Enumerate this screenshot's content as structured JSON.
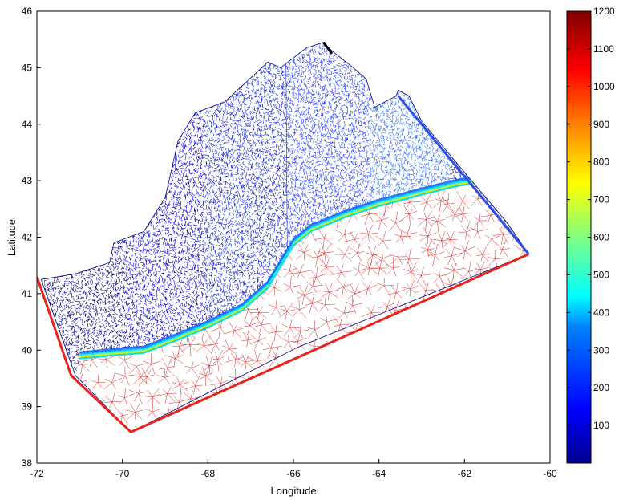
{
  "chart_data": {
    "type": "mesh-map",
    "title": "",
    "xlabel": "Longitude",
    "ylabel": "Latitude",
    "xlim": [
      -72,
      -60
    ],
    "ylim": [
      38,
      46
    ],
    "x_ticks": [
      -72,
      -70,
      -68,
      -66,
      -64,
      -62,
      -60
    ],
    "y_ticks": [
      38,
      39,
      40,
      41,
      42,
      43,
      44,
      45,
      46
    ],
    "grid": false,
    "colorbar": {
      "range": [
        0,
        1200
      ],
      "colormap": "jet",
      "ticks": [
        100,
        200,
        300,
        400,
        500,
        600,
        700,
        800,
        900,
        1000,
        1100,
        1200
      ],
      "placement": "right"
    },
    "series": [
      {
        "role": "mesh-domain-outline",
        "color": "#8b2222",
        "x": [
          -71.9,
          -71.1,
          -70.3,
          -70.2,
          -69.5,
          -69.0,
          -68.7,
          -68.3,
          -67.6,
          -67.1,
          -66.6,
          -66.3,
          -65.7,
          -65.3,
          -65.1,
          -64.6,
          -64.3,
          -64.1,
          -63.6,
          -63.55,
          -63.3,
          -63.0,
          -62.5,
          -62.0,
          -61.5,
          -61.0,
          -60.5,
          -65.9,
          -69.8,
          -71.1,
          -71.9
        ],
        "y": [
          41.25,
          41.35,
          41.55,
          41.9,
          42.1,
          42.7,
          43.7,
          44.2,
          44.4,
          44.75,
          45.1,
          45.0,
          45.35,
          45.45,
          45.3,
          45.0,
          44.8,
          44.3,
          44.5,
          44.6,
          44.5,
          44.05,
          43.6,
          43.15,
          42.7,
          42.25,
          41.7,
          40.05,
          38.55,
          39.55,
          41.25
        ]
      },
      {
        "role": "shelf-break-front",
        "color": "#00e0e0",
        "x": [
          -71.0,
          -70.3,
          -69.5,
          -68.8,
          -68.0,
          -67.2,
          -66.6,
          -66.2,
          -66.0,
          -65.6,
          -64.8,
          -64.0,
          -63.0,
          -62.2,
          -61.8
        ],
        "y": [
          39.85,
          39.9,
          39.95,
          40.15,
          40.4,
          40.7,
          41.1,
          41.6,
          41.85,
          42.1,
          42.35,
          42.55,
          42.75,
          42.9,
          42.95
        ]
      },
      {
        "role": "open-boundary-south",
        "color": "#e8231c",
        "x": [
          -72.0,
          -71.2,
          -69.8,
          -60.5
        ],
        "y": [
          41.3,
          39.55,
          38.55,
          41.7
        ]
      },
      {
        "role": "open-boundary-east",
        "color": "#2d4ee6",
        "x": [
          -63.55,
          -60.5
        ],
        "y": [
          44.5,
          41.7
        ]
      },
      {
        "role": "open-boundary-north",
        "color": "#000000",
        "x": [
          -65.3,
          -65.1
        ],
        "y": [
          45.45,
          45.25
        ]
      }
    ]
  }
}
